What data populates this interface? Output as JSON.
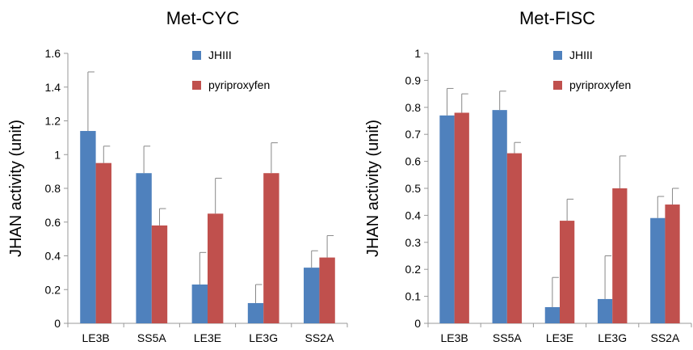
{
  "chart_data": [
    {
      "type": "bar",
      "title": "Met-CYC",
      "xlabel": "",
      "ylabel": "JHAN activity  (unit)",
      "ylim": [
        0,
        1.6
      ],
      "yticks": [
        0,
        0.2,
        0.4,
        0.6,
        0.8,
        1,
        1.2,
        1.4,
        1.6
      ],
      "categories": [
        "LE3B",
        "SS5A",
        "LE3E",
        "LE3G",
        "SS2A"
      ],
      "legend_position": "top-right",
      "grid": false,
      "series": [
        {
          "name": "JHIII",
          "color": "#4f81bd",
          "values": [
            1.14,
            0.89,
            0.23,
            0.12,
            0.33
          ],
          "errors": [
            0.35,
            0.16,
            0.19,
            0.11,
            0.1
          ]
        },
        {
          "name": "pyriproxyfen",
          "color": "#c0504d",
          "values": [
            0.95,
            0.58,
            0.65,
            0.89,
            0.39
          ],
          "errors": [
            0.1,
            0.1,
            0.21,
            0.18,
            0.13
          ]
        }
      ]
    },
    {
      "type": "bar",
      "title": "Met-FISC",
      "xlabel": "",
      "ylabel": "JHAN activity  (unit)",
      "ylim": [
        0,
        1
      ],
      "yticks": [
        0,
        0.1,
        0.2,
        0.3,
        0.4,
        0.5,
        0.6,
        0.7,
        0.8,
        0.9,
        1
      ],
      "categories": [
        "LE3B",
        "SS5A",
        "LE3E",
        "LE3G",
        "SS2A"
      ],
      "legend_position": "top-right",
      "grid": false,
      "series": [
        {
          "name": "JHIII",
          "color": "#4f81bd",
          "values": [
            0.77,
            0.79,
            0.06,
            0.09,
            0.39
          ],
          "errors": [
            0.1,
            0.07,
            0.11,
            0.16,
            0.08
          ]
        },
        {
          "name": "pyriproxyfen",
          "color": "#c0504d",
          "values": [
            0.78,
            0.63,
            0.38,
            0.5,
            0.44
          ],
          "errors": [
            0.07,
            0.04,
            0.08,
            0.12,
            0.06
          ]
        }
      ]
    }
  ]
}
